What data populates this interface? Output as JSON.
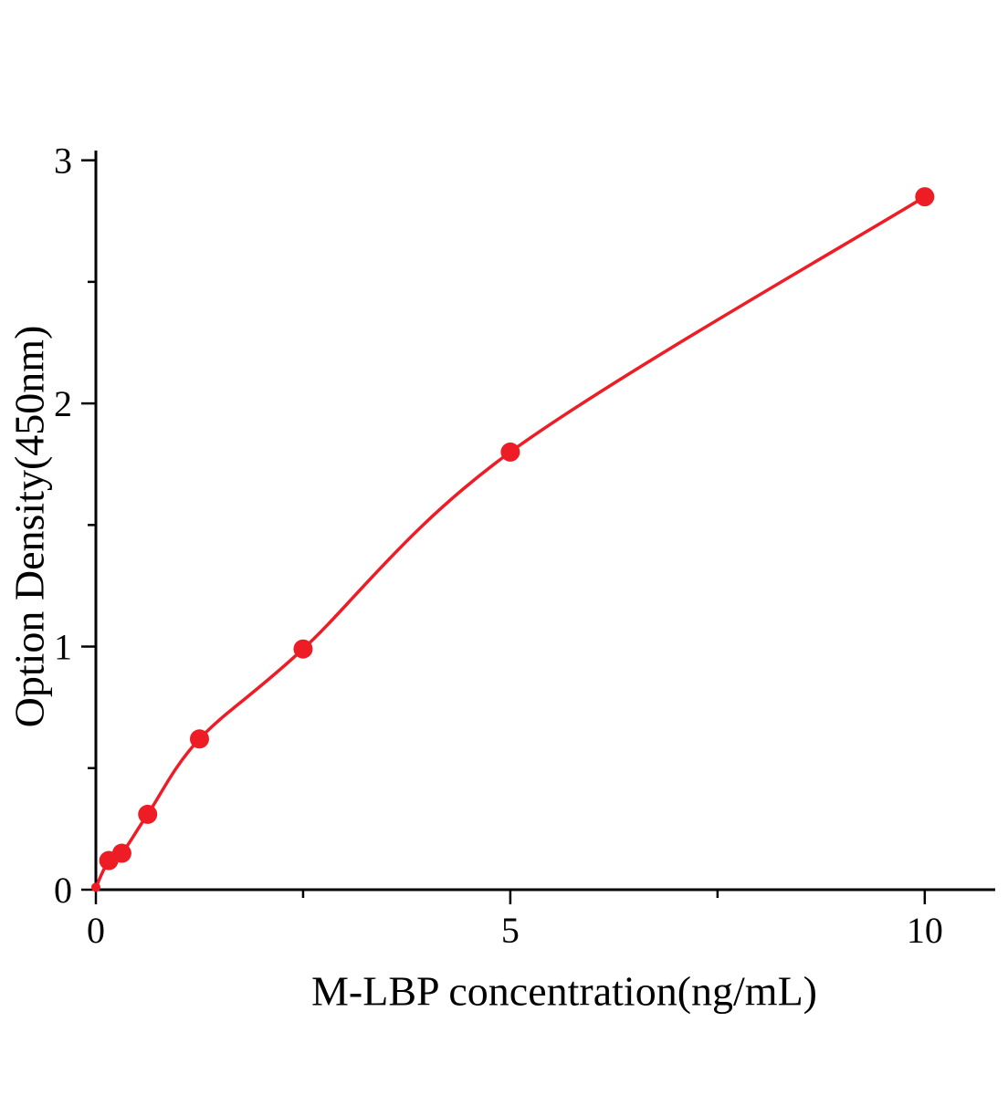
{
  "chart_data": {
    "type": "scatter",
    "title": "",
    "xlabel": "M-LBP concentration(ng/mL)",
    "ylabel": "Option Density(450nm)",
    "x": [
      0,
      0.156,
      0.313,
      0.625,
      1.25,
      2.5,
      5,
      10
    ],
    "y": [
      0.01,
      0.12,
      0.15,
      0.31,
      0.62,
      0.99,
      1.8,
      2.85
    ],
    "fit_line": true,
    "xlim": [
      0,
      10.85
    ],
    "ylim": [
      0,
      3.04
    ],
    "x_major_ticks": [
      0,
      5,
      10
    ],
    "x_minor_ticks": [
      2.5,
      7.5
    ],
    "y_major_ticks": [
      0,
      1,
      2,
      3
    ],
    "y_minor_ticks": [
      0.5,
      1.5,
      2.5
    ],
    "grid": false,
    "legend": false,
    "marker_color": "#ee1c25",
    "line_color": "#ee1c25",
    "axis_color": "#000000"
  }
}
